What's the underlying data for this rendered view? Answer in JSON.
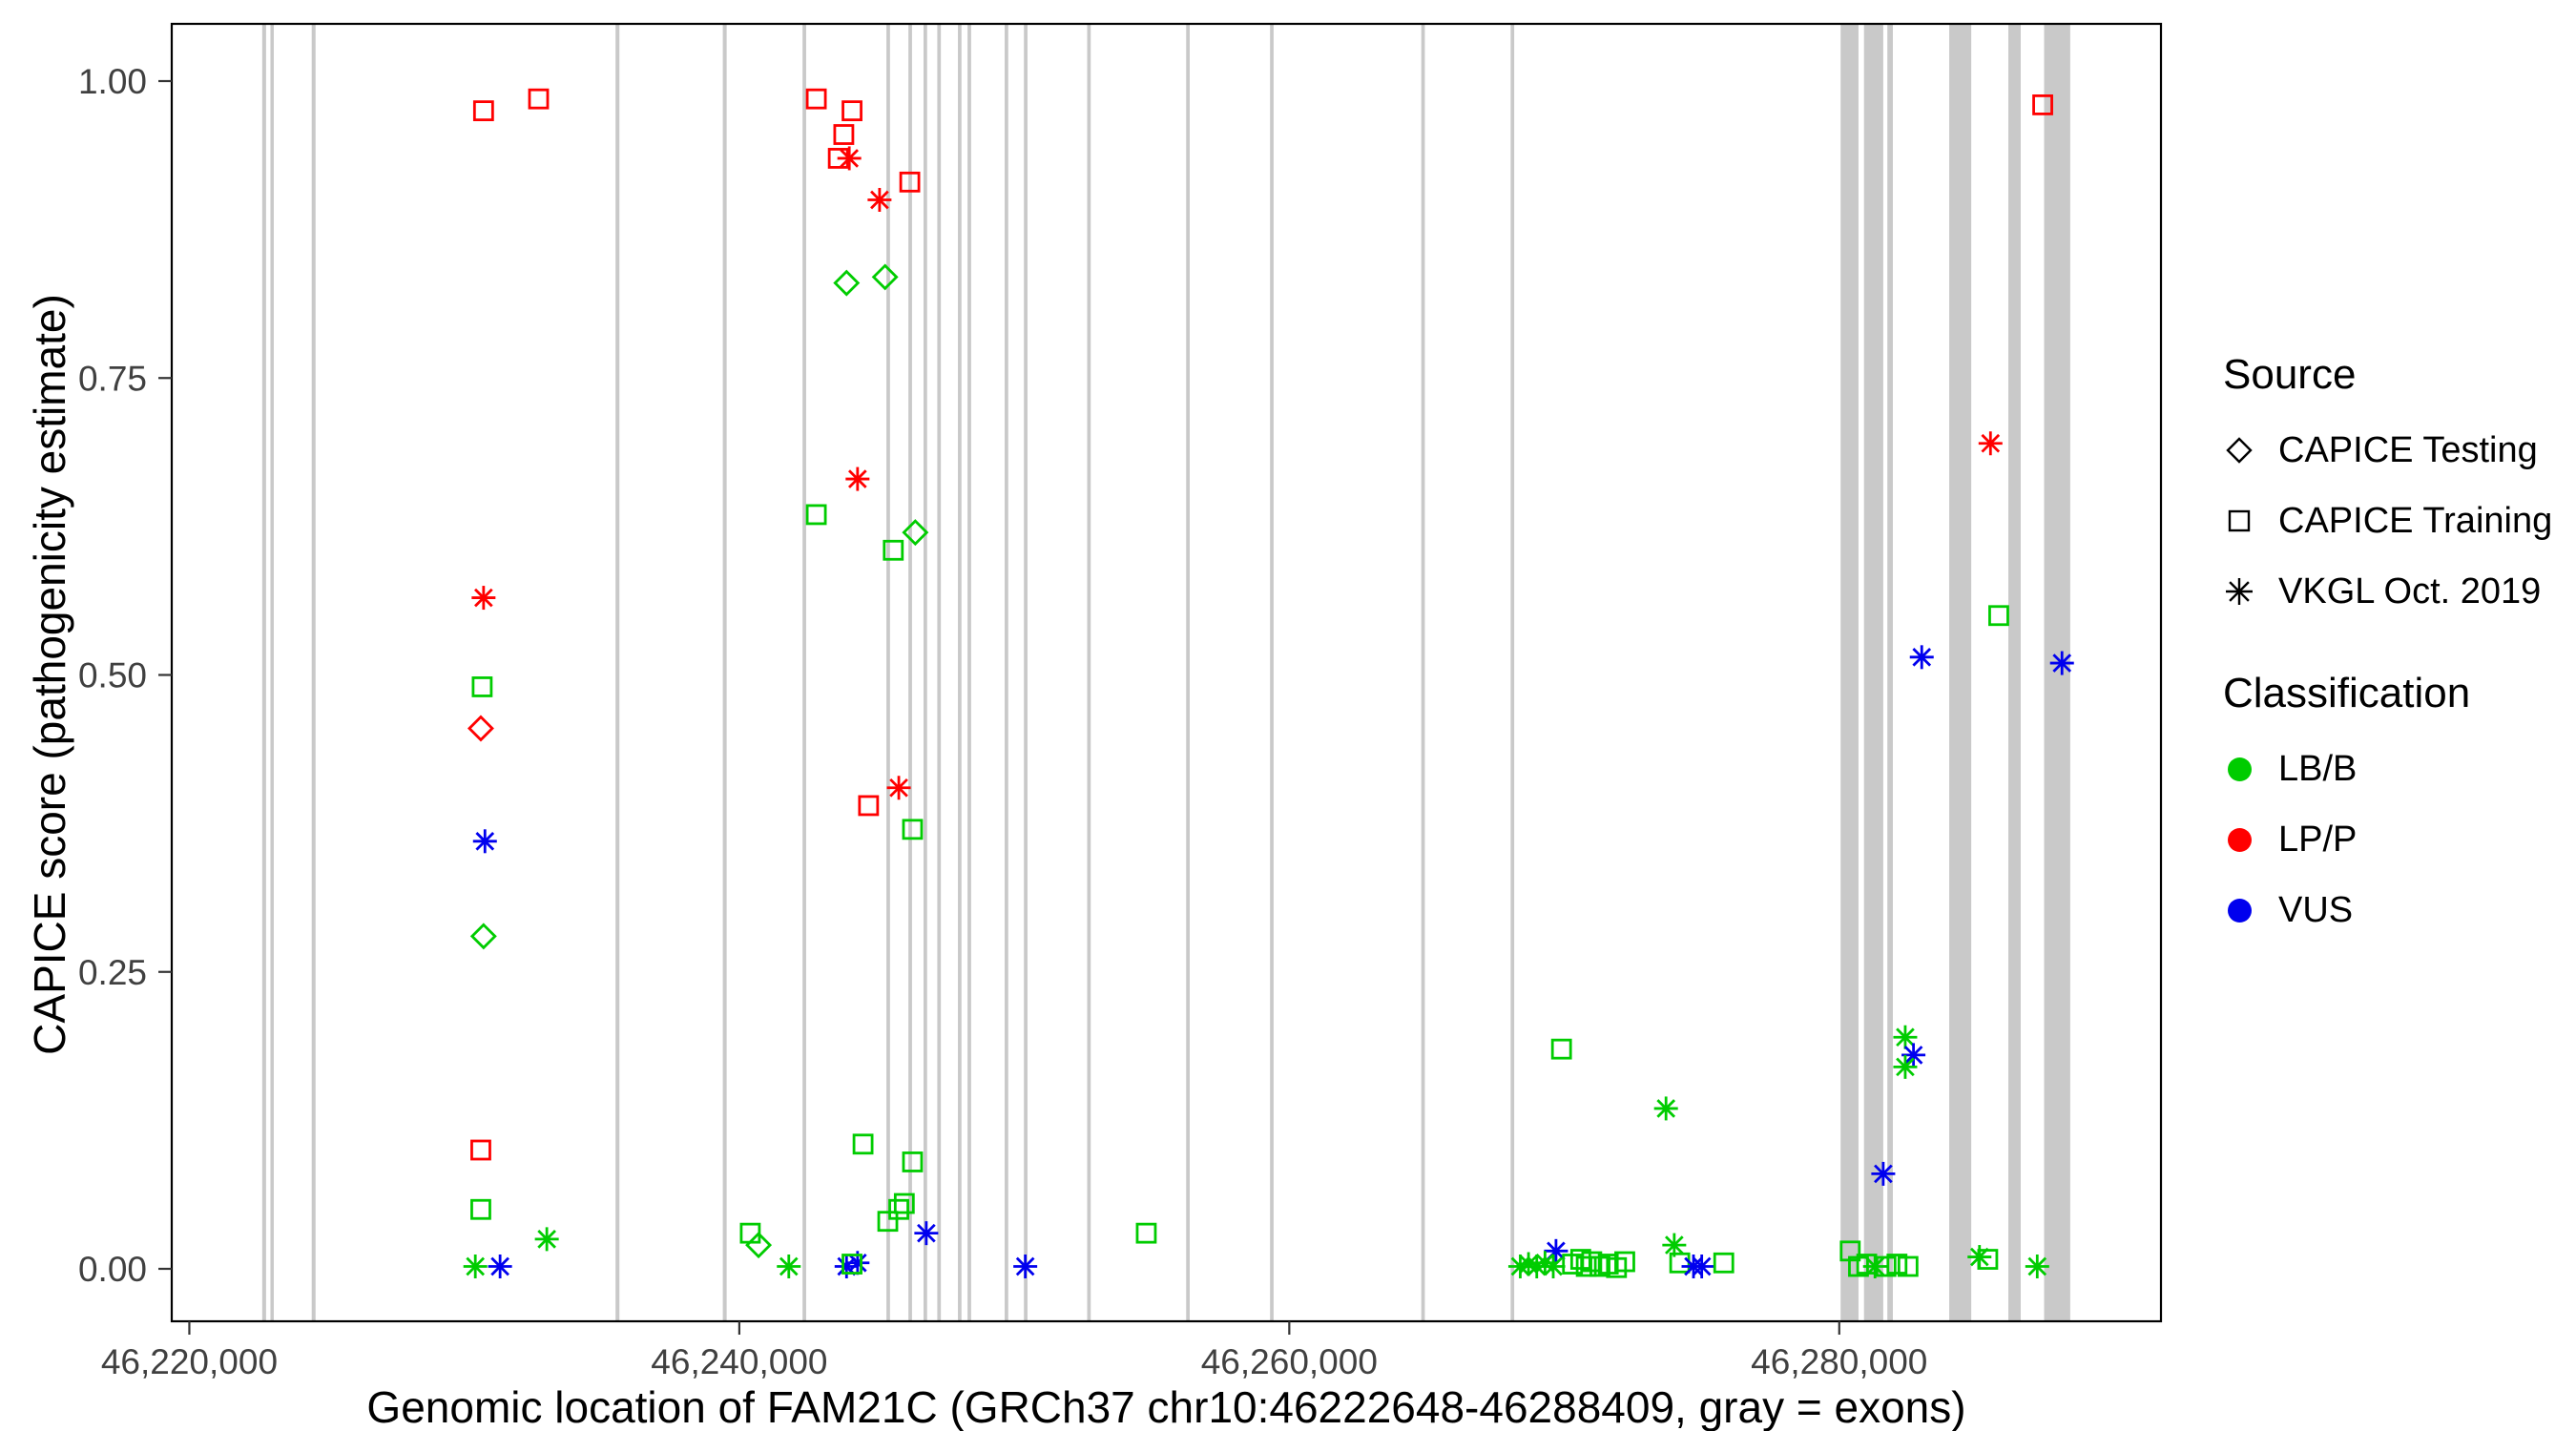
{
  "figure": {
    "xlabel": "Genomic location of FAM21C (GRCh37 chr10:46222648-46288409, gray = exons)",
    "ylabel": "CAPICE score (pathogenicity estimate)"
  },
  "legend": {
    "source": {
      "title": "Source",
      "items": [
        {
          "label": "CAPICE Testing",
          "shape": "diamond"
        },
        {
          "label": "CAPICE Training",
          "shape": "square"
        },
        {
          "label": "VKGL Oct. 2019",
          "shape": "asterisk"
        }
      ]
    },
    "classification": {
      "title": "Classification",
      "items": [
        {
          "label": "LB/B",
          "color": "#00CC00"
        },
        {
          "label": "LP/P",
          "color": "#FF0000"
        },
        {
          "label": "VUS",
          "color": "#0000EE"
        }
      ]
    }
  },
  "chart_data": {
    "type": "scatter",
    "title": "",
    "xlabel": "Genomic location of FAM21C (GRCh37 chr10:46222648-46288409, gray = exons)",
    "ylabel": "CAPICE score (pathogenicity estimate)",
    "xlim": [
      46219360,
      46291700
    ],
    "ylim": [
      0,
      1
    ],
    "grid": false,
    "legend_position": "right",
    "x_ticks": [
      {
        "v": 46220000,
        "label": "46,220,000"
      },
      {
        "v": 46240000,
        "label": "46,240,000"
      },
      {
        "v": 46260000,
        "label": "46,260,000"
      },
      {
        "v": 46280000,
        "label": "46,280,000"
      }
    ],
    "y_ticks": [
      {
        "v": 0.0,
        "label": "0.00"
      },
      {
        "v": 0.25,
        "label": "0.25"
      },
      {
        "v": 0.5,
        "label": "0.50"
      },
      {
        "v": 0.75,
        "label": "0.75"
      },
      {
        "v": 1.0,
        "label": "1.00"
      }
    ],
    "exon_color": "#C9C9C9",
    "exons": [
      [
        46222650,
        46222790
      ],
      [
        46222950,
        46223070
      ],
      [
        46224450,
        46224590
      ],
      [
        46235500,
        46235640
      ],
      [
        46239400,
        46239540
      ],
      [
        46242300,
        46242430
      ],
      [
        46245350,
        46245480
      ],
      [
        46246150,
        46246280
      ],
      [
        46246700,
        46246830
      ],
      [
        46247200,
        46247330
      ],
      [
        46247950,
        46248080
      ],
      [
        46248300,
        46248430
      ],
      [
        46249650,
        46249780
      ],
      [
        46250350,
        46250480
      ],
      [
        46252650,
        46252780
      ],
      [
        46256250,
        46256380
      ],
      [
        46259300,
        46259430
      ],
      [
        46264800,
        46264930
      ],
      [
        46268050,
        46268180
      ],
      [
        46280050,
        46280700
      ],
      [
        46280900,
        46281600
      ],
      [
        46281750,
        46281950
      ],
      [
        46284000,
        46284800
      ],
      [
        46286150,
        46286600
      ],
      [
        46287450,
        46288400
      ]
    ],
    "source_shape_map": {
      "testing": "diamond",
      "training": "square",
      "vkgl": "asterisk"
    },
    "source_label_map": {
      "testing": "CAPICE Testing",
      "training": "CAPICE Training",
      "vkgl": "VKGL Oct. 2019"
    },
    "class_color_map": {
      "LB/B": "#00CC00",
      "LP/P": "#FF0000",
      "VUS": "#0000EE"
    },
    "points": [
      {
        "x": 46230700,
        "y": 0.975,
        "source": "training",
        "class": "LP/P"
      },
      {
        "x": 46232700,
        "y": 0.985,
        "source": "training",
        "class": "LP/P"
      },
      {
        "x": 46230700,
        "y": 0.565,
        "source": "vkgl",
        "class": "LP/P"
      },
      {
        "x": 46230650,
        "y": 0.49,
        "source": "training",
        "class": "LB/B"
      },
      {
        "x": 46230600,
        "y": 0.455,
        "source": "testing",
        "class": "LP/P"
      },
      {
        "x": 46230750,
        "y": 0.36,
        "source": "vkgl",
        "class": "VUS"
      },
      {
        "x": 46230700,
        "y": 0.28,
        "source": "testing",
        "class": "LB/B"
      },
      {
        "x": 46230600,
        "y": 0.1,
        "source": "training",
        "class": "LP/P"
      },
      {
        "x": 46230600,
        "y": 0.05,
        "source": "training",
        "class": "LB/B"
      },
      {
        "x": 46230400,
        "y": 0.002,
        "source": "vkgl",
        "class": "LB/B"
      },
      {
        "x": 46231300,
        "y": 0.002,
        "source": "vkgl",
        "class": "VUS"
      },
      {
        "x": 46233000,
        "y": 0.025,
        "source": "vkgl",
        "class": "LB/B"
      },
      {
        "x": 46242800,
        "y": 0.985,
        "source": "training",
        "class": "LP/P"
      },
      {
        "x": 46244100,
        "y": 0.975,
        "source": "training",
        "class": "LP/P"
      },
      {
        "x": 46243800,
        "y": 0.955,
        "source": "training",
        "class": "LP/P"
      },
      {
        "x": 46243600,
        "y": 0.935,
        "source": "training",
        "class": "LP/P"
      },
      {
        "x": 46244000,
        "y": 0.935,
        "source": "vkgl",
        "class": "LP/P"
      },
      {
        "x": 46245100,
        "y": 0.9,
        "source": "vkgl",
        "class": "LP/P"
      },
      {
        "x": 46246200,
        "y": 0.915,
        "source": "training",
        "class": "LP/P"
      },
      {
        "x": 46243900,
        "y": 0.83,
        "source": "testing",
        "class": "LB/B"
      },
      {
        "x": 46245300,
        "y": 0.835,
        "source": "testing",
        "class": "LB/B"
      },
      {
        "x": 46244300,
        "y": 0.665,
        "source": "vkgl",
        "class": "LP/P"
      },
      {
        "x": 46242800,
        "y": 0.635,
        "source": "training",
        "class": "LB/B"
      },
      {
        "x": 46245600,
        "y": 0.605,
        "source": "training",
        "class": "LB/B"
      },
      {
        "x": 46246400,
        "y": 0.62,
        "source": "testing",
        "class": "LB/B"
      },
      {
        "x": 46244700,
        "y": 0.39,
        "source": "training",
        "class": "LP/P"
      },
      {
        "x": 46245800,
        "y": 0.405,
        "source": "vkgl",
        "class": "LP/P"
      },
      {
        "x": 46246300,
        "y": 0.37,
        "source": "training",
        "class": "LB/B"
      },
      {
        "x": 46244500,
        "y": 0.105,
        "source": "training",
        "class": "LB/B"
      },
      {
        "x": 46246300,
        "y": 0.09,
        "source": "training",
        "class": "LB/B"
      },
      {
        "x": 46245400,
        "y": 0.04,
        "source": "training",
        "class": "LB/B"
      },
      {
        "x": 46245800,
        "y": 0.05,
        "source": "training",
        "class": "LB/B"
      },
      {
        "x": 46246000,
        "y": 0.055,
        "source": "training",
        "class": "LB/B"
      },
      {
        "x": 46246800,
        "y": 0.03,
        "source": "vkgl",
        "class": "VUS"
      },
      {
        "x": 46240400,
        "y": 0.03,
        "source": "training",
        "class": "LB/B"
      },
      {
        "x": 46240700,
        "y": 0.02,
        "source": "testing",
        "class": "LB/B"
      },
      {
        "x": 46241800,
        "y": 0.002,
        "source": "vkgl",
        "class": "LB/B"
      },
      {
        "x": 46243900,
        "y": 0.002,
        "source": "vkgl",
        "class": "VUS"
      },
      {
        "x": 46244300,
        "y": 0.005,
        "source": "vkgl",
        "class": "VUS"
      },
      {
        "x": 46244100,
        "y": 0.004,
        "source": "training",
        "class": "LB/B"
      },
      {
        "x": 46250400,
        "y": 0.002,
        "source": "vkgl",
        "class": "VUS"
      },
      {
        "x": 46254800,
        "y": 0.03,
        "source": "training",
        "class": "LB/B"
      },
      {
        "x": 46269900,
        "y": 0.185,
        "source": "training",
        "class": "LB/B"
      },
      {
        "x": 46273700,
        "y": 0.135,
        "source": "vkgl",
        "class": "LB/B"
      },
      {
        "x": 46269700,
        "y": 0.015,
        "source": "vkgl",
        "class": "VUS"
      },
      {
        "x": 46268400,
        "y": 0.002,
        "source": "vkgl",
        "class": "LB/B"
      },
      {
        "x": 46268700,
        "y": 0.004,
        "source": "vkgl",
        "class": "LB/B"
      },
      {
        "x": 46269000,
        "y": 0.002,
        "source": "vkgl",
        "class": "LB/B"
      },
      {
        "x": 46269300,
        "y": 0.005,
        "source": "vkgl",
        "class": "LB/B"
      },
      {
        "x": 46269600,
        "y": 0.002,
        "source": "vkgl",
        "class": "LB/B"
      },
      {
        "x": 46270300,
        "y": 0.004,
        "source": "training",
        "class": "LB/B"
      },
      {
        "x": 46270600,
        "y": 0.008,
        "source": "training",
        "class": "LB/B"
      },
      {
        "x": 46270800,
        "y": 0.002,
        "source": "training",
        "class": "LB/B"
      },
      {
        "x": 46271000,
        "y": 0.006,
        "source": "training",
        "class": "LB/B"
      },
      {
        "x": 46271300,
        "y": 0.002,
        "source": "training",
        "class": "LB/B"
      },
      {
        "x": 46271600,
        "y": 0.004,
        "source": "training",
        "class": "LB/B"
      },
      {
        "x": 46271900,
        "y": 0.001,
        "source": "training",
        "class": "LB/B"
      },
      {
        "x": 46272200,
        "y": 0.006,
        "source": "training",
        "class": "LB/B"
      },
      {
        "x": 46274000,
        "y": 0.02,
        "source": "vkgl",
        "class": "LB/B"
      },
      {
        "x": 46274200,
        "y": 0.005,
        "source": "training",
        "class": "LB/B"
      },
      {
        "x": 46274700,
        "y": 0.002,
        "source": "vkgl",
        "class": "VUS"
      },
      {
        "x": 46275000,
        "y": 0.002,
        "source": "vkgl",
        "class": "VUS"
      },
      {
        "x": 46275800,
        "y": 0.005,
        "source": "training",
        "class": "LB/B"
      },
      {
        "x": 46283000,
        "y": 0.515,
        "source": "vkgl",
        "class": "VUS"
      },
      {
        "x": 46285500,
        "y": 0.695,
        "source": "vkgl",
        "class": "LP/P"
      },
      {
        "x": 46285800,
        "y": 0.55,
        "source": "training",
        "class": "LB/B"
      },
      {
        "x": 46287400,
        "y": 0.98,
        "source": "training",
        "class": "LP/P"
      },
      {
        "x": 46288100,
        "y": 0.51,
        "source": "vkgl",
        "class": "VUS"
      },
      {
        "x": 46282400,
        "y": 0.195,
        "source": "vkgl",
        "class": "LB/B"
      },
      {
        "x": 46282700,
        "y": 0.18,
        "source": "vkgl",
        "class": "VUS"
      },
      {
        "x": 46282400,
        "y": 0.17,
        "source": "vkgl",
        "class": "LB/B"
      },
      {
        "x": 46281600,
        "y": 0.08,
        "source": "vkgl",
        "class": "VUS"
      },
      {
        "x": 46280400,
        "y": 0.015,
        "source": "training",
        "class": "LB/B"
      },
      {
        "x": 46280700,
        "y": 0.002,
        "source": "training",
        "class": "LB/B"
      },
      {
        "x": 46281000,
        "y": 0.004,
        "source": "training",
        "class": "LB/B"
      },
      {
        "x": 46281300,
        "y": 0.002,
        "source": "vkgl",
        "class": "LB/B"
      },
      {
        "x": 46281700,
        "y": 0.002,
        "source": "training",
        "class": "LB/B"
      },
      {
        "x": 46282100,
        "y": 0.004,
        "source": "training",
        "class": "LB/B"
      },
      {
        "x": 46282500,
        "y": 0.002,
        "source": "training",
        "class": "LB/B"
      },
      {
        "x": 46285100,
        "y": 0.01,
        "source": "vkgl",
        "class": "LB/B"
      },
      {
        "x": 46285400,
        "y": 0.008,
        "source": "training",
        "class": "LB/B"
      },
      {
        "x": 46287200,
        "y": 0.002,
        "source": "vkgl",
        "class": "LB/B"
      }
    ]
  }
}
